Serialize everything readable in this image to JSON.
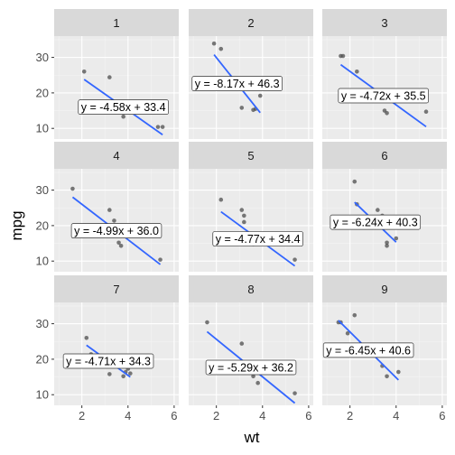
{
  "chart_data": {
    "type": "scatter",
    "xlabel": "wt",
    "ylabel": "mpg",
    "xlim": [
      0.8,
      6.2
    ],
    "ylim": [
      7,
      36
    ],
    "x_ticks": [
      2,
      4,
      6
    ],
    "y_ticks": [
      10,
      20,
      30
    ],
    "grid": true,
    "panels": [
      {
        "label": "1",
        "equation": "y = -4.58x + 33.4",
        "slope": -4.58,
        "intercept": 33.4,
        "points": [
          [
            2.1,
            26.0
          ],
          [
            3.2,
            24.4
          ],
          [
            3.8,
            13.3
          ],
          [
            5.3,
            10.4
          ],
          [
            5.5,
            10.4
          ]
        ]
      },
      {
        "label": "2",
        "equation": "y = -8.17x + 46.3",
        "slope": -8.17,
        "intercept": 46.3,
        "points": [
          [
            1.9,
            33.9
          ],
          [
            2.2,
            32.4
          ],
          [
            3.1,
            15.8
          ],
          [
            3.6,
            15.2
          ],
          [
            3.7,
            15.5
          ],
          [
            3.9,
            19.2
          ]
        ]
      },
      {
        "label": "3",
        "equation": "y = -4.72x + 35.5",
        "slope": -4.72,
        "intercept": 35.5,
        "points": [
          [
            1.6,
            30.4
          ],
          [
            1.7,
            30.4
          ],
          [
            2.3,
            26.0
          ],
          [
            3.4,
            17.8
          ],
          [
            3.5,
            15.0
          ],
          [
            3.6,
            14.3
          ],
          [
            5.3,
            14.7
          ]
        ]
      },
      {
        "label": "4",
        "equation": "y = -4.99x + 36.0",
        "slope": -4.99,
        "intercept": 36.0,
        "points": [
          [
            1.6,
            30.4
          ],
          [
            3.2,
            24.4
          ],
          [
            3.4,
            21.4
          ],
          [
            3.6,
            15.2
          ],
          [
            3.7,
            14.3
          ],
          [
            5.4,
            10.4
          ]
        ]
      },
      {
        "label": "5",
        "equation": "y = -4.77x + 34.4",
        "slope": -4.77,
        "intercept": 34.4,
        "points": [
          [
            2.2,
            27.3
          ],
          [
            3.1,
            24.4
          ],
          [
            3.2,
            22.8
          ],
          [
            3.2,
            21.0
          ],
          [
            3.4,
            15.2
          ],
          [
            3.5,
            16.4
          ],
          [
            3.6,
            14.7
          ],
          [
            3.8,
            15.5
          ],
          [
            5.4,
            10.4
          ]
        ]
      },
      {
        "label": "6",
        "equation": "y = -6.24x + 40.3",
        "slope": -6.24,
        "intercept": 40.3,
        "points": [
          [
            2.2,
            32.4
          ],
          [
            2.3,
            26.0
          ],
          [
            3.2,
            24.4
          ],
          [
            3.4,
            22.8
          ],
          [
            3.6,
            15.2
          ],
          [
            3.6,
            14.3
          ],
          [
            4.0,
            16.4
          ]
        ]
      },
      {
        "label": "7",
        "equation": "y = -4.71x + 34.3",
        "slope": -4.71,
        "intercept": 34.3,
        "points": [
          [
            2.2,
            26.0
          ],
          [
            2.4,
            21.4
          ],
          [
            3.2,
            15.8
          ],
          [
            3.8,
            15.2
          ],
          [
            3.9,
            16.4
          ],
          [
            4.0,
            17.3
          ],
          [
            4.1,
            16.0
          ]
        ]
      },
      {
        "label": "8",
        "equation": "y = -5.29x + 36.2",
        "slope": -5.29,
        "intercept": 36.2,
        "points": [
          [
            1.6,
            30.4
          ],
          [
            3.1,
            24.4
          ],
          [
            3.4,
            16.4
          ],
          [
            3.6,
            15.2
          ],
          [
            3.8,
            13.3
          ],
          [
            5.4,
            10.4
          ]
        ]
      },
      {
        "label": "9",
        "equation": "y = -6.45x + 40.6",
        "slope": -6.45,
        "intercept": 40.6,
        "points": [
          [
            1.5,
            30.4
          ],
          [
            1.6,
            30.4
          ],
          [
            1.9,
            27.3
          ],
          [
            2.2,
            32.4
          ],
          [
            3.4,
            18.1
          ],
          [
            3.6,
            15.2
          ],
          [
            4.1,
            16.4
          ]
        ]
      }
    ]
  }
}
